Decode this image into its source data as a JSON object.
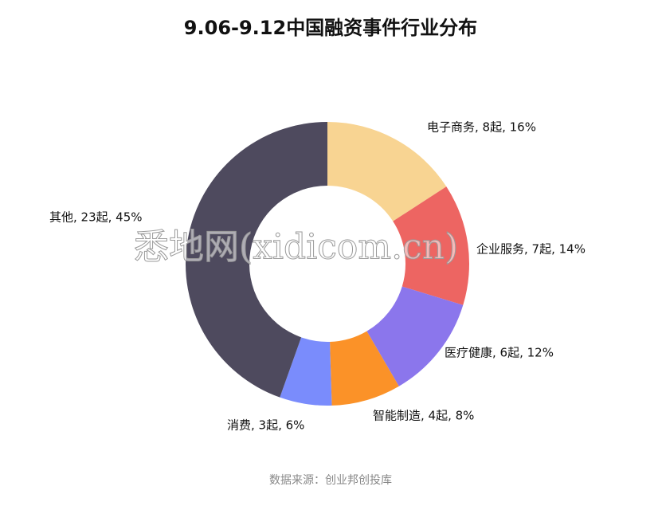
{
  "chart_data": {
    "type": "pie",
    "title": "9.06-9.12中国融资事件行业分布",
    "labels": [
      "电子商务, 8起, 16%",
      "企业服务, 7起, 14%",
      "医疗健康, 6起, 12%",
      "智能制造, 4起, 8%",
      "消费, 3起, 6%",
      "其他, 23起, 45%"
    ],
    "values": [
      16,
      14,
      12,
      8,
      6,
      45
    ],
    "colors": [
      "#f8d492",
      "#ed6562",
      "#8b76ec",
      "#fb9228",
      "#7a8cfc",
      "#4e4a5e"
    ],
    "donut": true,
    "watermark": "悉地网(xidicom.cn)",
    "source": "数据来源：创业邦创投库"
  }
}
